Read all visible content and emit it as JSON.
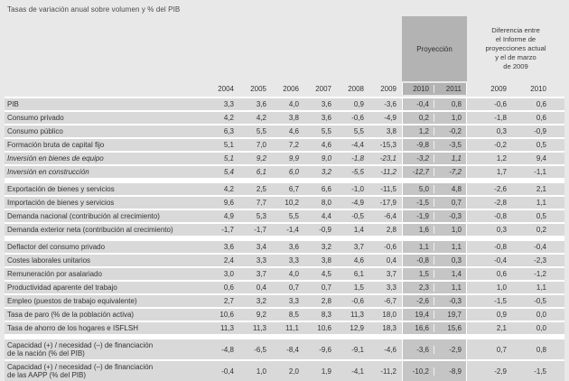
{
  "title": "Tasas de variación anual sobre volumen y % del PIB",
  "colors": {
    "page_background": "#e8e8e8",
    "row_band": "#d9d9d9",
    "projection_cell": "#c5c5c5",
    "projection_header": "#b3b3b3",
    "separator": "#ffffff",
    "text": "#333333"
  },
  "table": {
    "projection_header": "Proyección",
    "difference_header": "Diferencia entre\nel Informe de\nproyecciones actual\ny el de marzo\nde 2009",
    "year_columns": [
      "2004",
      "2005",
      "2006",
      "2007",
      "2008",
      "2009"
    ],
    "projection_columns": [
      "2010",
      "2011"
    ],
    "difference_columns": [
      "2009",
      "2010"
    ],
    "rows": [
      {
        "label": "PIB",
        "italic": false,
        "two_line": false,
        "separator_after": false,
        "values": [
          "3,3",
          "3,6",
          "4,0",
          "3,6",
          "0,9",
          "-3,6",
          "-0,4",
          "0,8",
          "-0,6",
          "0,6"
        ]
      },
      {
        "label": "Consumo privado",
        "italic": false,
        "two_line": false,
        "separator_after": false,
        "values": [
          "4,2",
          "4,2",
          "3,8",
          "3,6",
          "-0,6",
          "-4,9",
          "0,2",
          "1,0",
          "-1,8",
          "0,6"
        ]
      },
      {
        "label": "Consumo público",
        "italic": false,
        "two_line": false,
        "separator_after": false,
        "values": [
          "6,3",
          "5,5",
          "4,6",
          "5,5",
          "5,5",
          "3,8",
          "1,2",
          "-0,2",
          "0,3",
          "-0,9"
        ]
      },
      {
        "label": "Formación bruta de capital fijo",
        "italic": false,
        "two_line": false,
        "separator_after": false,
        "values": [
          "5,1",
          "7,0",
          "7,2",
          "4,6",
          "-4,4",
          "-15,3",
          "-9,8",
          "-3,5",
          "-0,2",
          "0,5"
        ]
      },
      {
        "label": "Inversión en bienes de equipo",
        "italic": true,
        "two_line": false,
        "separator_after": false,
        "values": [
          "5,1",
          "9,2",
          "9,9",
          "9,0",
          "-1,8",
          "-23,1",
          "-3,2",
          "1,1",
          "1,2",
          "9,4"
        ]
      },
      {
        "label": "Inversión en construcción",
        "italic": true,
        "two_line": false,
        "separator_after": true,
        "values": [
          "5,4",
          "6,1",
          "6,0",
          "3,2",
          "-5,5",
          "-11,2",
          "-12,7",
          "-7,2",
          "1,7",
          "-1,1"
        ]
      },
      {
        "label": "Exportación de bienes y servicios",
        "italic": false,
        "two_line": false,
        "separator_after": false,
        "values": [
          "4,2",
          "2,5",
          "6,7",
          "6,6",
          "-1,0",
          "-11,5",
          "5,0",
          "4,8",
          "-2,6",
          "2,1"
        ]
      },
      {
        "label": "Importación de bienes y servicios",
        "italic": false,
        "two_line": false,
        "separator_after": false,
        "values": [
          "9,6",
          "7,7",
          "10,2",
          "8,0",
          "-4,9",
          "-17,9",
          "-1,5",
          "0,7",
          "-2,8",
          "1,1"
        ]
      },
      {
        "label": "Demanda nacional (contribución al crecimiento)",
        "italic": false,
        "two_line": false,
        "separator_after": false,
        "values": [
          "4,9",
          "5,3",
          "5,5",
          "4,4",
          "-0,5",
          "-6,4",
          "-1,9",
          "-0,3",
          "-0,8",
          "0,5"
        ]
      },
      {
        "label": "Demanda exterior neta (contribución al crecimiento)",
        "italic": false,
        "two_line": false,
        "separator_after": true,
        "values": [
          "-1,7",
          "-1,7",
          "-1,4",
          "-0,9",
          "1,4",
          "2,8",
          "1,6",
          "1,0",
          "0,3",
          "0,2"
        ]
      },
      {
        "label": "Deflactor del consumo privado",
        "italic": false,
        "two_line": false,
        "separator_after": false,
        "values": [
          "3,6",
          "3,4",
          "3,6",
          "3,2",
          "3,7",
          "-0,6",
          "1,1",
          "1,1",
          "-0,8",
          "-0,4"
        ]
      },
      {
        "label": "Costes laborales unitarios",
        "italic": false,
        "two_line": false,
        "separator_after": false,
        "values": [
          "2,4",
          "3,3",
          "3,3",
          "3,8",
          "4,6",
          "0,4",
          "-0,8",
          "0,3",
          "-0,4",
          "-2,3"
        ]
      },
      {
        "label": "Remuneración por asalariado",
        "italic": false,
        "two_line": false,
        "separator_after": false,
        "values": [
          "3,0",
          "3,7",
          "4,0",
          "4,5",
          "6,1",
          "3,7",
          "1,5",
          "1,4",
          "0,6",
          "-1,2"
        ]
      },
      {
        "label": "Productividad aparente del trabajo",
        "italic": false,
        "two_line": false,
        "separator_after": false,
        "values": [
          "0,6",
          "0,4",
          "0,7",
          "0,7",
          "1,5",
          "3,3",
          "2,3",
          "1,1",
          "1,0",
          "1,1"
        ]
      },
      {
        "label": "Empleo (puestos de trabajo equivalente)",
        "italic": false,
        "two_line": false,
        "separator_after": false,
        "values": [
          "2,7",
          "3,2",
          "3,3",
          "2,8",
          "-0,6",
          "-6,7",
          "-2,6",
          "-0,3",
          "-1,5",
          "-0,5"
        ]
      },
      {
        "label": "Tasa de paro (% de la población activa)",
        "italic": false,
        "two_line": false,
        "separator_after": false,
        "values": [
          "10,6",
          "9,2",
          "8,5",
          "8,3",
          "11,3",
          "18,0",
          "19,4",
          "19,7",
          "0,9",
          "0,0"
        ]
      },
      {
        "label": "Tasa de ahorro de los hogares e ISFLSH",
        "italic": false,
        "two_line": false,
        "separator_after": true,
        "values": [
          "11,3",
          "11,3",
          "11,1",
          "10,6",
          "12,9",
          "18,3",
          "16,6",
          "15,6",
          "2,1",
          "0,0"
        ]
      },
      {
        "label": "Capacidad (+) / necesidad (–) de financiación\nde la nación (% del PIB)",
        "italic": false,
        "two_line": true,
        "separator_after": false,
        "values": [
          "-4,8",
          "-6,5",
          "-8,4",
          "-9,6",
          "-9,1",
          "-4,6",
          "-3,6",
          "-2,9",
          "0,7",
          "0,8"
        ]
      },
      {
        "label": "Capacidad (+) / necesidad (–) de financiación\nde las AAPP (% del PIB)",
        "italic": false,
        "two_line": true,
        "separator_after": false,
        "values": [
          "-0,4",
          "1,0",
          "2,0",
          "1,9",
          "-4,1",
          "-11,2",
          "-10,2",
          "-8,9",
          "-2,9",
          "-1,5"
        ]
      }
    ]
  }
}
